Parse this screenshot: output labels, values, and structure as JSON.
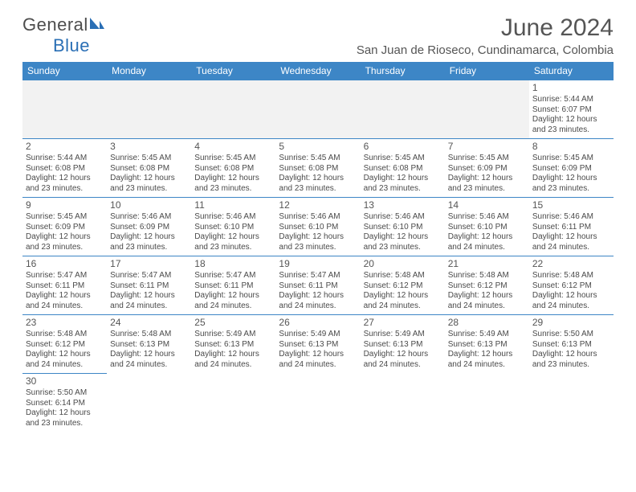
{
  "brand": {
    "name_a": "General",
    "name_b": "Blue"
  },
  "title": "June 2024",
  "location": "San Juan de Rioseco, Cundinamarca, Colombia",
  "colors": {
    "header_bg": "#3d86c6",
    "header_fg": "#ffffff",
    "border": "#3d86c6",
    "text": "#4a4a4a"
  },
  "day_headers": [
    "Sunday",
    "Monday",
    "Tuesday",
    "Wednesday",
    "Thursday",
    "Friday",
    "Saturday"
  ],
  "weeks": [
    [
      null,
      null,
      null,
      null,
      null,
      null,
      {
        "d": "1",
        "sr": "Sunrise: 5:44 AM",
        "ss": "Sunset: 6:07 PM",
        "dl1": "Daylight: 12 hours",
        "dl2": "and 23 minutes."
      }
    ],
    [
      {
        "d": "2",
        "sr": "Sunrise: 5:44 AM",
        "ss": "Sunset: 6:08 PM",
        "dl1": "Daylight: 12 hours",
        "dl2": "and 23 minutes."
      },
      {
        "d": "3",
        "sr": "Sunrise: 5:45 AM",
        "ss": "Sunset: 6:08 PM",
        "dl1": "Daylight: 12 hours",
        "dl2": "and 23 minutes."
      },
      {
        "d": "4",
        "sr": "Sunrise: 5:45 AM",
        "ss": "Sunset: 6:08 PM",
        "dl1": "Daylight: 12 hours",
        "dl2": "and 23 minutes."
      },
      {
        "d": "5",
        "sr": "Sunrise: 5:45 AM",
        "ss": "Sunset: 6:08 PM",
        "dl1": "Daylight: 12 hours",
        "dl2": "and 23 minutes."
      },
      {
        "d": "6",
        "sr": "Sunrise: 5:45 AM",
        "ss": "Sunset: 6:08 PM",
        "dl1": "Daylight: 12 hours",
        "dl2": "and 23 minutes."
      },
      {
        "d": "7",
        "sr": "Sunrise: 5:45 AM",
        "ss": "Sunset: 6:09 PM",
        "dl1": "Daylight: 12 hours",
        "dl2": "and 23 minutes."
      },
      {
        "d": "8",
        "sr": "Sunrise: 5:45 AM",
        "ss": "Sunset: 6:09 PM",
        "dl1": "Daylight: 12 hours",
        "dl2": "and 23 minutes."
      }
    ],
    [
      {
        "d": "9",
        "sr": "Sunrise: 5:45 AM",
        "ss": "Sunset: 6:09 PM",
        "dl1": "Daylight: 12 hours",
        "dl2": "and 23 minutes."
      },
      {
        "d": "10",
        "sr": "Sunrise: 5:46 AM",
        "ss": "Sunset: 6:09 PM",
        "dl1": "Daylight: 12 hours",
        "dl2": "and 23 minutes."
      },
      {
        "d": "11",
        "sr": "Sunrise: 5:46 AM",
        "ss": "Sunset: 6:10 PM",
        "dl1": "Daylight: 12 hours",
        "dl2": "and 23 minutes."
      },
      {
        "d": "12",
        "sr": "Sunrise: 5:46 AM",
        "ss": "Sunset: 6:10 PM",
        "dl1": "Daylight: 12 hours",
        "dl2": "and 23 minutes."
      },
      {
        "d": "13",
        "sr": "Sunrise: 5:46 AM",
        "ss": "Sunset: 6:10 PM",
        "dl1": "Daylight: 12 hours",
        "dl2": "and 23 minutes."
      },
      {
        "d": "14",
        "sr": "Sunrise: 5:46 AM",
        "ss": "Sunset: 6:10 PM",
        "dl1": "Daylight: 12 hours",
        "dl2": "and 24 minutes."
      },
      {
        "d": "15",
        "sr": "Sunrise: 5:46 AM",
        "ss": "Sunset: 6:11 PM",
        "dl1": "Daylight: 12 hours",
        "dl2": "and 24 minutes."
      }
    ],
    [
      {
        "d": "16",
        "sr": "Sunrise: 5:47 AM",
        "ss": "Sunset: 6:11 PM",
        "dl1": "Daylight: 12 hours",
        "dl2": "and 24 minutes."
      },
      {
        "d": "17",
        "sr": "Sunrise: 5:47 AM",
        "ss": "Sunset: 6:11 PM",
        "dl1": "Daylight: 12 hours",
        "dl2": "and 24 minutes."
      },
      {
        "d": "18",
        "sr": "Sunrise: 5:47 AM",
        "ss": "Sunset: 6:11 PM",
        "dl1": "Daylight: 12 hours",
        "dl2": "and 24 minutes."
      },
      {
        "d": "19",
        "sr": "Sunrise: 5:47 AM",
        "ss": "Sunset: 6:11 PM",
        "dl1": "Daylight: 12 hours",
        "dl2": "and 24 minutes."
      },
      {
        "d": "20",
        "sr": "Sunrise: 5:48 AM",
        "ss": "Sunset: 6:12 PM",
        "dl1": "Daylight: 12 hours",
        "dl2": "and 24 minutes."
      },
      {
        "d": "21",
        "sr": "Sunrise: 5:48 AM",
        "ss": "Sunset: 6:12 PM",
        "dl1": "Daylight: 12 hours",
        "dl2": "and 24 minutes."
      },
      {
        "d": "22",
        "sr": "Sunrise: 5:48 AM",
        "ss": "Sunset: 6:12 PM",
        "dl1": "Daylight: 12 hours",
        "dl2": "and 24 minutes."
      }
    ],
    [
      {
        "d": "23",
        "sr": "Sunrise: 5:48 AM",
        "ss": "Sunset: 6:12 PM",
        "dl1": "Daylight: 12 hours",
        "dl2": "and 24 minutes."
      },
      {
        "d": "24",
        "sr": "Sunrise: 5:48 AM",
        "ss": "Sunset: 6:13 PM",
        "dl1": "Daylight: 12 hours",
        "dl2": "and 24 minutes."
      },
      {
        "d": "25",
        "sr": "Sunrise: 5:49 AM",
        "ss": "Sunset: 6:13 PM",
        "dl1": "Daylight: 12 hours",
        "dl2": "and 24 minutes."
      },
      {
        "d": "26",
        "sr": "Sunrise: 5:49 AM",
        "ss": "Sunset: 6:13 PM",
        "dl1": "Daylight: 12 hours",
        "dl2": "and 24 minutes."
      },
      {
        "d": "27",
        "sr": "Sunrise: 5:49 AM",
        "ss": "Sunset: 6:13 PM",
        "dl1": "Daylight: 12 hours",
        "dl2": "and 24 minutes."
      },
      {
        "d": "28",
        "sr": "Sunrise: 5:49 AM",
        "ss": "Sunset: 6:13 PM",
        "dl1": "Daylight: 12 hours",
        "dl2": "and 24 minutes."
      },
      {
        "d": "29",
        "sr": "Sunrise: 5:50 AM",
        "ss": "Sunset: 6:13 PM",
        "dl1": "Daylight: 12 hours",
        "dl2": "and 23 minutes."
      }
    ],
    [
      {
        "d": "30",
        "sr": "Sunrise: 5:50 AM",
        "ss": "Sunset: 6:14 PM",
        "dl1": "Daylight: 12 hours",
        "dl2": "and 23 minutes."
      },
      null,
      null,
      null,
      null,
      null,
      null
    ]
  ]
}
